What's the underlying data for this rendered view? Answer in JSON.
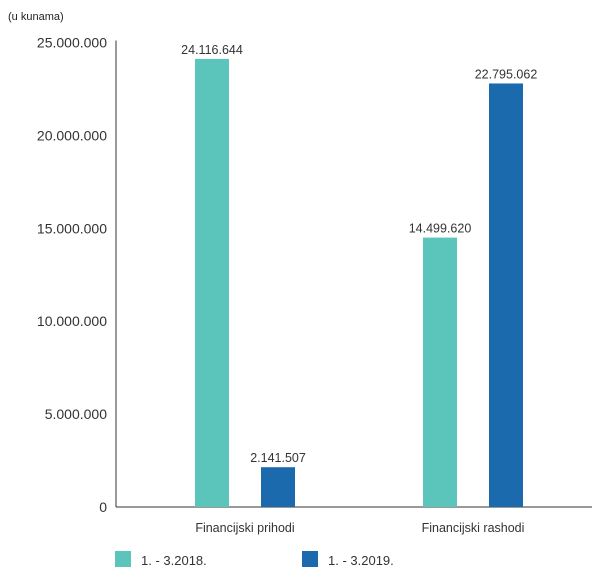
{
  "chart_data": {
    "type": "bar",
    "unit_note": "(u kunama)",
    "title": "",
    "xlabel": "",
    "ylabel": "",
    "categories": [
      "Financijski prihodi",
      "Financijski rashodi"
    ],
    "series": [
      {
        "name": "1. - 3.2018.",
        "color": "#5bc5bc",
        "values": [
          24116644,
          14499620
        ],
        "labels": [
          "24.116.644",
          "14.499.620"
        ]
      },
      {
        "name": "1. - 3.2019.",
        "color": "#1a6aad",
        "values": [
          2141507,
          22795062
        ],
        "labels": [
          "2.141.507",
          "22.795.062"
        ]
      }
    ],
    "ylim": [
      0,
      25000000
    ],
    "yticks": [
      0,
      5000000,
      10000000,
      15000000,
      20000000,
      25000000
    ],
    "ytick_labels": [
      "0",
      "5.000.000",
      "10.000.000",
      "15.000.000",
      "20.000.000",
      "25.000.000"
    ],
    "grid": false,
    "legend_position": "bottom-left"
  }
}
